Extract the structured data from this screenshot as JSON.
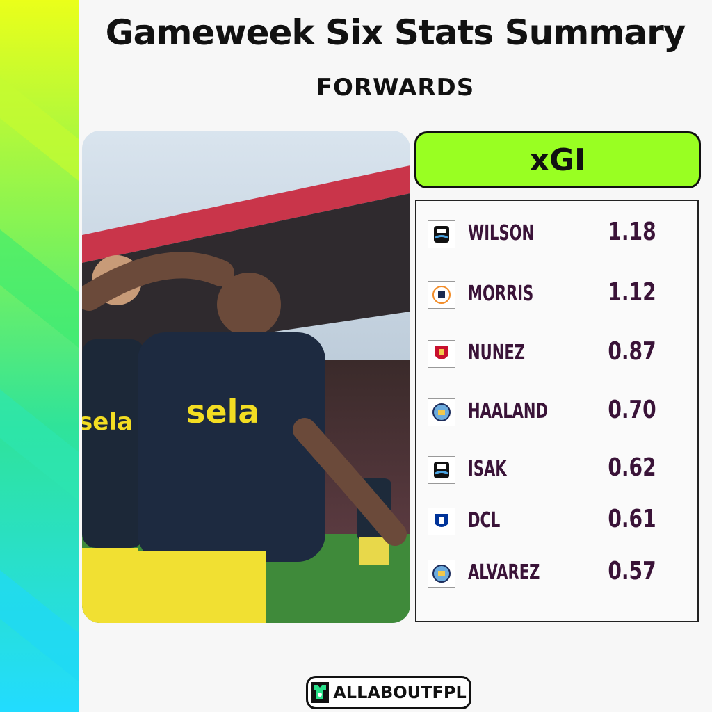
{
  "title": "Gameweek Six Stats Summary",
  "subtitle": "FORWARDS",
  "metric": "xGI",
  "players": [
    {
      "name": "WILSON",
      "value": "1.18",
      "club_icon": "newcastle-crest-icon"
    },
    {
      "name": "MORRIS",
      "value": "1.12",
      "club_icon": "luton-crest-icon"
    },
    {
      "name": "NUNEZ",
      "value": "0.87",
      "club_icon": "liverpool-crest-icon"
    },
    {
      "name": "HAALAND",
      "value": "0.70",
      "club_icon": "man-city-crest-icon"
    },
    {
      "name": "ISAK",
      "value": "0.62",
      "club_icon": "newcastle-crest-icon"
    },
    {
      "name": "DCL",
      "value": "0.61",
      "club_icon": "everton-crest-icon"
    },
    {
      "name": "ALVAREZ",
      "value": "0.57",
      "club_icon": "man-city-crest-icon"
    }
  ],
  "brand": {
    "logo_text": "ALLABOUTFPL",
    "photo_shirt_sponsor": "sela"
  },
  "colors": {
    "accent_green": "#99ff22",
    "text_purple": "#3a1338",
    "stripe_top": "#e8ff1a",
    "stripe_bottom": "#22e0ff"
  }
}
